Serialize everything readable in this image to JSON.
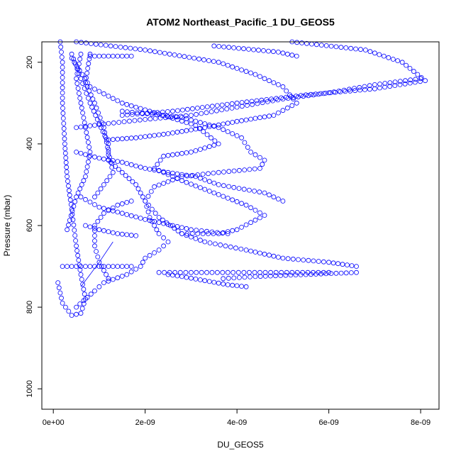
{
  "chart_data": {
    "type": "scatter",
    "title": "ATOM2 Northeast_Pacific_1 DU_GEOS5",
    "xlabel": "DU_GEOS5",
    "ylabel": "Pressure (mbar)",
    "xlim": [
      -2.5e-10,
      8.4e-09
    ],
    "ylim": [
      1050,
      150
    ],
    "y_reversed": true,
    "grid": false,
    "legend": "none",
    "x_ticks": [
      {
        "value": 0,
        "label": "0e+00"
      },
      {
        "value": 2e-09,
        "label": "2e-09"
      },
      {
        "value": 4e-09,
        "label": "4e-09"
      },
      {
        "value": 6e-09,
        "label": "6e-09"
      },
      {
        "value": 8e-09,
        "label": "8e-09"
      }
    ],
    "y_ticks": [
      {
        "value": 200,
        "label": "200"
      },
      {
        "value": 400,
        "label": "400"
      },
      {
        "value": 600,
        "label": "600"
      },
      {
        "value": 800,
        "label": "800"
      },
      {
        "value": 1000,
        "label": "1000"
      }
    ],
    "marker": "open-circle",
    "color": "#0000ff",
    "series": [
      {
        "points": [
          [
            5.2e-09,
            150
          ],
          [
            6.8e-09,
            170
          ],
          [
            7.6e-09,
            200
          ],
          [
            8.1e-09,
            245
          ],
          [
            7e-09,
            265
          ],
          [
            5.5e-09,
            280
          ],
          [
            4e-09,
            300
          ],
          [
            2.6e-09,
            320
          ],
          [
            1.5e-09,
            330
          ]
        ]
      },
      {
        "points": [
          [
            3.5e-09,
            160
          ],
          [
            4.9e-09,
            175
          ],
          [
            5.3e-09,
            185
          ]
        ]
      },
      {
        "points": [
          [
            5e-10,
            150
          ],
          [
            2e-09,
            170
          ],
          [
            3.6e-09,
            200
          ],
          [
            4.4e-09,
            230
          ],
          [
            5e-09,
            260
          ],
          [
            5.3e-09,
            300
          ],
          [
            4.8e-09,
            330
          ],
          [
            4e-09,
            345
          ],
          [
            3.3e-09,
            360
          ],
          [
            2.5e-09,
            375
          ],
          [
            1.8e-09,
            385
          ],
          [
            1.2e-09,
            390
          ]
        ]
      },
      {
        "points": [
          [
            1.5e-09,
            320
          ],
          [
            2.8e-09,
            335
          ],
          [
            3.6e-09,
            360
          ],
          [
            4.1e-09,
            385
          ],
          [
            4.3e-09,
            420
          ],
          [
            4.6e-09,
            440
          ],
          [
            4.5e-09,
            460
          ],
          [
            3.6e-09,
            470
          ],
          [
            2.8e-09,
            480
          ],
          [
            2.2e-09,
            505
          ],
          [
            2e-09,
            540
          ],
          [
            2.3e-09,
            580
          ],
          [
            2.8e-09,
            620
          ],
          [
            3.3e-09,
            640
          ],
          [
            4.2e-09,
            660
          ],
          [
            5e-09,
            680
          ],
          [
            6e-09,
            690
          ],
          [
            6.6e-09,
            700
          ],
          [
            6.6e-09,
            715
          ],
          [
            5.5e-09,
            720
          ],
          [
            4.4e-09,
            725
          ],
          [
            3.7e-09,
            730
          ]
        ]
      },
      {
        "points": [
          [
            4e-10,
            190
          ],
          [
            8e-10,
            260
          ],
          [
            1.5e-09,
            300
          ],
          [
            2.4e-09,
            330
          ],
          [
            3.1e-09,
            355
          ],
          [
            3.6e-09,
            400
          ],
          [
            3e-09,
            420
          ],
          [
            2.4e-09,
            430
          ],
          [
            2.2e-09,
            460
          ],
          [
            2.8e-09,
            490
          ],
          [
            3.5e-09,
            520
          ],
          [
            4.2e-09,
            550
          ],
          [
            4.6e-09,
            575
          ],
          [
            4e-09,
            610
          ],
          [
            3.6e-09,
            620
          ],
          [
            2.8e-09,
            620
          ]
        ]
      },
      {
        "points": [
          [
            2e-10,
            700
          ],
          [
            8e-10,
            700
          ],
          [
            1.2e-09,
            700
          ],
          [
            1.5e-09,
            700
          ],
          [
            1.7e-09,
            700
          ]
        ]
      },
      {
        "points": [
          [
            2.3e-09,
            715
          ],
          [
            3e-09,
            715
          ],
          [
            3.8e-09,
            715
          ],
          [
            4.5e-09,
            715
          ],
          [
            5.2e-09,
            715
          ],
          [
            6e-09,
            715
          ]
        ]
      },
      {
        "points": [
          [
            2.5e-09,
            720
          ],
          [
            2.8e-09,
            725
          ],
          [
            3.3e-09,
            735
          ],
          [
            3.8e-09,
            745
          ],
          [
            4.2e-09,
            750
          ]
        ]
      },
      {
        "points": [
          [
            1e-10,
            740
          ],
          [
            2e-10,
            790
          ],
          [
            4e-10,
            820
          ],
          [
            6e-10,
            815
          ],
          [
            7e-10,
            780
          ],
          [
            6e-10,
            720
          ],
          [
            5e-10,
            650
          ],
          [
            4e-10,
            560
          ],
          [
            3e-10,
            480
          ],
          [
            2.5e-10,
            400
          ],
          [
            2e-10,
            300
          ],
          [
            2e-10,
            200
          ],
          [
            1.5e-10,
            150
          ]
        ]
      },
      {
        "points": [
          [
            5e-10,
            800
          ],
          [
            9e-10,
            760
          ],
          [
            1.1e-09,
            740
          ],
          [
            1.6e-09,
            720
          ],
          [
            1.9e-09,
            700
          ],
          [
            2e-09,
            680
          ],
          [
            2.3e-09,
            660
          ],
          [
            2.5e-09,
            640
          ],
          [
            2.3e-09,
            620
          ],
          [
            2.1e-09,
            580
          ],
          [
            2e-09,
            540
          ],
          [
            1.8e-09,
            500
          ],
          [
            1.5e-09,
            470
          ],
          [
            1.2e-09,
            440
          ],
          [
            1.2e-09,
            400
          ],
          [
            1e-09,
            350
          ],
          [
            8e-10,
            300
          ],
          [
            6e-10,
            240
          ],
          [
            4e-10,
            180
          ]
        ]
      },
      {
        "points": [
          [
            3e-10,
            610
          ],
          [
            5e-10,
            530
          ],
          [
            7e-10,
            480
          ],
          [
            8e-10,
            420
          ],
          [
            7e-10,
            360
          ],
          [
            6e-10,
            300
          ],
          [
            5e-10,
            240
          ],
          [
            6e-10,
            180
          ]
        ]
      },
      {
        "points": [
          [
            9e-10,
            530
          ],
          [
            1.3e-09,
            470
          ],
          [
            1.2e-09,
            420
          ],
          [
            1.1e-09,
            360
          ],
          [
            9e-10,
            300
          ],
          [
            7e-10,
            250
          ],
          [
            8e-10,
            180
          ]
        ]
      },
      {
        "points": [
          [
            1.2e-09,
            730
          ],
          [
            1e-09,
            690
          ],
          [
            9e-10,
            650
          ],
          [
            9e-10,
            600
          ],
          [
            1.1e-09,
            570
          ],
          [
            1.4e-09,
            550
          ],
          [
            1.7e-09,
            540
          ]
        ]
      },
      {
        "points": [
          [
            5e-10,
            420
          ],
          [
            1e-09,
            435
          ],
          [
            1.5e-09,
            445
          ],
          [
            2e-09,
            460
          ],
          [
            2.5e-09,
            470
          ],
          [
            3.1e-09,
            480
          ],
          [
            3.6e-09,
            500
          ],
          [
            4.6e-09,
            520
          ],
          [
            5e-09,
            540
          ]
        ]
      },
      {
        "points": [
          [
            6e-10,
            530
          ],
          [
            1e-09,
            555
          ],
          [
            1.5e-09,
            570
          ],
          [
            2e-09,
            585
          ],
          [
            2.6e-09,
            600
          ],
          [
            3e-09,
            610
          ],
          [
            3.8e-09,
            620
          ]
        ]
      },
      {
        "points": [
          [
            5e-10,
            360
          ],
          [
            1.2e-09,
            350
          ],
          [
            2e-09,
            340
          ],
          [
            3e-09,
            330
          ],
          [
            4e-09,
            310
          ],
          [
            5e-09,
            290
          ],
          [
            6e-09,
            275
          ],
          [
            7e-09,
            255
          ],
          [
            8e-09,
            240
          ]
        ]
      },
      {
        "points": [
          [
            7e-10,
            600
          ],
          [
            1e-09,
            610
          ],
          [
            1.4e-09,
            620
          ],
          [
            1.8e-09,
            625
          ]
        ]
      },
      {
        "points": [
          [
            8e-10,
            185
          ],
          [
            1.2e-09,
            185
          ],
          [
            1.7e-09,
            185
          ]
        ]
      }
    ],
    "connected_points": [
      [
        6e-10,
        750
      ],
      [
        1e-09,
        690
      ],
      [
        1.3e-09,
        640
      ]
    ]
  }
}
